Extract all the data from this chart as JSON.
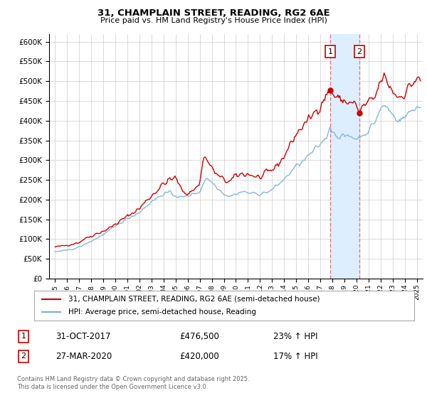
{
  "title1": "31, CHAMPLAIN STREET, READING, RG2 6AE",
  "title2": "Price paid vs. HM Land Registry's House Price Index (HPI)",
  "legend_line1": "31, CHAMPLAIN STREET, READING, RG2 6AE (semi-detached house)",
  "legend_line2": "HPI: Average price, semi-detached house, Reading",
  "footnote": "Contains HM Land Registry data © Crown copyright and database right 2025.\nThis data is licensed under the Open Government Licence v3.0.",
  "sale1_label": "1",
  "sale1_date": "31-OCT-2017",
  "sale1_price": "£476,500",
  "sale1_hpi": "23% ↑ HPI",
  "sale2_label": "2",
  "sale2_date": "27-MAR-2020",
  "sale2_price": "£420,000",
  "sale2_hpi": "17% ↑ HPI",
  "sale1_year": 2017.83,
  "sale2_year": 2020.25,
  "sale1_value": 476500,
  "sale2_value": 420000,
  "red_color": "#cc0000",
  "blue_color": "#7ab0d4",
  "shade_color": "#ddeeff",
  "ylim_min": 0,
  "ylim_max": 620000,
  "xlim_min": 1994.5,
  "xlim_max": 2025.5,
  "background_color": "#ffffff",
  "grid_color": "#cccccc",
  "dashed_color": "#e08080"
}
